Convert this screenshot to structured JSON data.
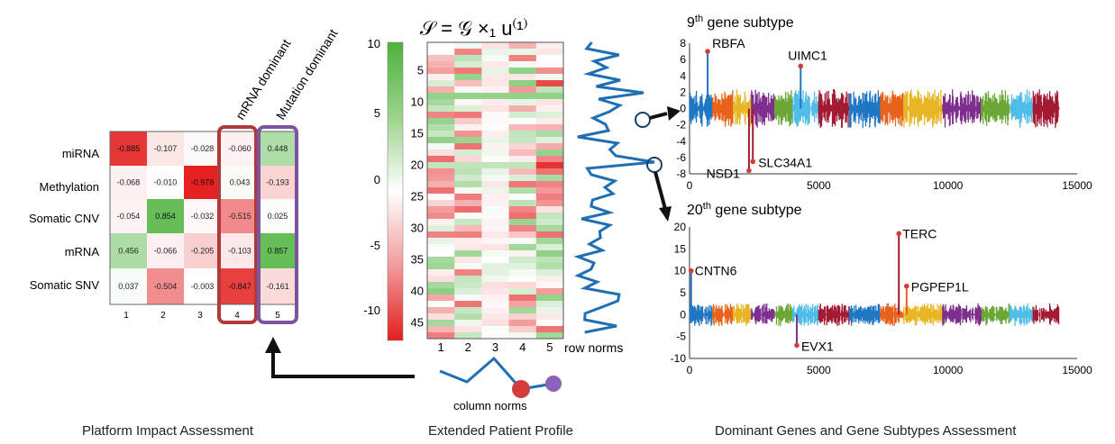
{
  "platform": {
    "rows": [
      "miRNA",
      "Methylation",
      "Somatic CNV",
      "mRNA",
      "Somatic SNV"
    ],
    "cols": [
      "1",
      "2",
      "3",
      "4",
      "5"
    ],
    "values": [
      [
        "-0.885",
        "-0.107",
        "-0.028",
        "-0.060",
        "0.448"
      ],
      [
        "-0.068",
        "-0.010",
        "-0.978",
        "0.043",
        "-0.193"
      ],
      [
        "-0.054",
        "0.854",
        "-0.032",
        "-0.515",
        "0.025"
      ],
      [
        "0.456",
        "-0.066",
        "-0.205",
        "-0.103",
        "0.857"
      ],
      [
        "0.037",
        "-0.504",
        "-0.003",
        "-0.847",
        "-0.161"
      ]
    ],
    "col4_label": "mRNA dominant",
    "col5_label": "Mutation dominant"
  },
  "profile": {
    "formula": "𝒮 = 𝒢 ×₁ u⁽¹⁾",
    "colorbar_ticks": [
      "10",
      "5",
      "0",
      "-5",
      "-10"
    ],
    "row_ticks": [
      "5",
      "10",
      "15",
      "20",
      "25",
      "30",
      "35",
      "40",
      "45"
    ],
    "col_ticks": [
      "1",
      "2",
      "3",
      "4",
      "5"
    ],
    "row_norms_label": "row norms",
    "column_norms_label": "column norms"
  },
  "subtype9": {
    "title_num": "9",
    "title_sup": "th",
    "title_rest": " gene subtype",
    "yticks": [
      "8",
      "6",
      "4",
      "2",
      "0",
      "-2",
      "-4",
      "-6",
      "-8"
    ],
    "xticks": [
      "0",
      "5000",
      "10000",
      "15000"
    ],
    "genes": [
      "RBFA",
      "UIMC1",
      "SLC34A1",
      "NSD1"
    ]
  },
  "subtype20": {
    "title_num": "20",
    "title_sup": "th",
    "title_rest": " gene subtype",
    "yticks": [
      "20",
      "15",
      "10",
      "5",
      "0",
      "-5",
      "-10"
    ],
    "xticks": [
      "0",
      "5000",
      "10000",
      "15000"
    ],
    "genes": [
      "TERC",
      "CNTN6",
      "PGPEP1L",
      "EVX1"
    ]
  },
  "captions": {
    "left": "Platform Impact Assessment",
    "middle": "Extended Patient Profile",
    "right": "Dominant Genes and Gene Subtypes Assessment"
  },
  "colors": {
    "blue": "#1f6fb5",
    "red_box": "#b03a3a",
    "purple_box": "#7b55a0",
    "dot_red": "#d23c3c",
    "dot_purple": "#8a63b8"
  }
}
